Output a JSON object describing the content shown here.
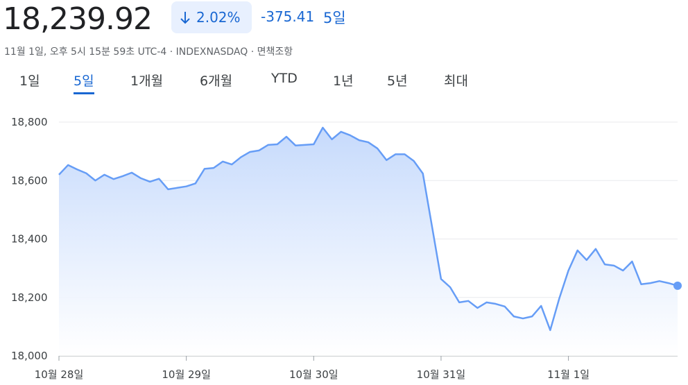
{
  "header": {
    "price": "18,239.92",
    "change_percent": "2.02%",
    "change_value": "-375.41",
    "change_period": "5일",
    "meta": "11월 1일, 오후 5시 15분 59초 UTC-4 · INDEXNASDAQ · 면책조항"
  },
  "tabs": [
    "1일",
    "5일",
    "1개월",
    "6개월",
    "YTD",
    "1년",
    "5년",
    "최대"
  ],
  "selected_tab": "5일",
  "chart_data": {
    "type": "area",
    "color": "#669df6",
    "grid": true,
    "ylim": [
      18000,
      18800
    ],
    "yticks": [
      {
        "value": 18000,
        "label": "18,000"
      },
      {
        "value": 18200,
        "label": "18,200"
      },
      {
        "value": 18400,
        "label": "18,400"
      },
      {
        "value": 18600,
        "label": "18,600"
      },
      {
        "value": 18800,
        "label": "18,800"
      }
    ],
    "categories": [
      "10월 28일",
      null,
      null,
      null,
      null,
      null,
      null,
      null,
      null,
      null,
      null,
      null,
      null,
      null,
      "10월 29일",
      null,
      null,
      null,
      null,
      null,
      null,
      null,
      null,
      null,
      null,
      null,
      null,
      null,
      "10월 30일",
      null,
      null,
      null,
      null,
      null,
      null,
      null,
      null,
      null,
      null,
      null,
      null,
      null,
      "10월 31일",
      null,
      null,
      null,
      null,
      null,
      null,
      null,
      null,
      null,
      null,
      null,
      null,
      null,
      "11월 1일",
      null,
      null,
      null,
      null,
      null,
      null,
      null,
      null,
      null,
      null,
      null,
      null
    ],
    "values": [
      18620,
      18653,
      18638,
      18625,
      18600,
      18620,
      18605,
      18615,
      18627,
      18608,
      18596,
      18606,
      18570,
      18575,
      18580,
      18590,
      18640,
      18643,
      18665,
      18655,
      18680,
      18698,
      18703,
      18722,
      18724,
      18750,
      18720,
      18722,
      18724,
      18781,
      18741,
      18767,
      18755,
      18738,
      18731,
      18710,
      18670,
      18690,
      18690,
      18667,
      18624,
      18444,
      18263,
      18235,
      18183,
      18188,
      18164,
      18183,
      18178,
      18169,
      18135,
      18128,
      18135,
      18171,
      18088,
      18197,
      18292,
      18361,
      18328,
      18366,
      18313,
      18309,
      18292,
      18323,
      18245,
      18249,
      18256,
      18249,
      18240
    ]
  }
}
